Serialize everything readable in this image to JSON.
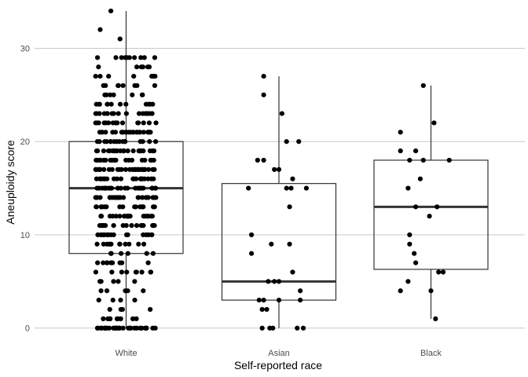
{
  "chart_data": {
    "type": "boxplot",
    "xlabel": "Self-reported race",
    "ylabel": "Aneuploidy score",
    "categories": [
      "White",
      "Asian",
      "Black"
    ],
    "ylim": [
      -1.2,
      34.5
    ],
    "yticks": [
      0,
      10,
      20,
      30
    ],
    "grid": true,
    "colors": {
      "points": "#000000",
      "box_stroke": "#333333",
      "grid": "#c8c8c8",
      "tick_text": "#4d4d4d"
    },
    "boxes": [
      {
        "category": "White",
        "min": 0,
        "q1": 8,
        "median": 15,
        "q3": 20,
        "max": 34
      },
      {
        "category": "Asian",
        "min": 0,
        "q1": 3,
        "median": 5,
        "q3": 15.5,
        "max": 27
      },
      {
        "category": "Black",
        "min": 1,
        "q1": 6.3,
        "median": 13,
        "q3": 18,
        "max": 26
      }
    ],
    "points": [
      {
        "category": "Asian",
        "values": [
          27,
          25,
          23,
          20,
          20,
          18,
          18,
          17,
          17,
          16,
          15,
          15,
          15,
          15,
          13,
          10,
          9,
          9,
          8,
          6,
          5,
          5,
          5,
          4,
          3,
          3,
          3,
          3,
          2,
          2,
          0,
          0,
          0,
          0,
          0
        ],
        "jitter": [
          -0.1,
          -0.1,
          0.02,
          0.05,
          0.13,
          -0.1,
          -0.14,
          -0.03,
          0.0,
          0.09,
          -0.2,
          0.05,
          0.08,
          0.18,
          0.07,
          -0.18,
          -0.05,
          0.07,
          -0.18,
          0.09,
          -0.03,
          -0.07,
          0.0,
          0.14,
          -0.13,
          -0.1,
          0.0,
          0.14,
          -0.11,
          -0.08,
          -0.11,
          -0.06,
          -0.04,
          0.12,
          0.16
        ]
      },
      {
        "category": "Black",
        "values": [
          26,
          22,
          21,
          19,
          19,
          18,
          18,
          18,
          16,
          15,
          13,
          13,
          12,
          10,
          9,
          8,
          7,
          6,
          6,
          5,
          4,
          4,
          1
        ],
        "jitter": [
          -0.05,
          0.02,
          -0.2,
          -0.2,
          -0.1,
          -0.14,
          -0.05,
          0.12,
          -0.07,
          -0.15,
          -0.1,
          0.04,
          -0.01,
          -0.14,
          -0.14,
          -0.11,
          -0.1,
          0.05,
          0.08,
          -0.15,
          -0.2,
          0.0,
          0.03
        ]
      }
    ],
    "dense_points": {
      "category": "White",
      "n": 420,
      "seed": 7,
      "spread": 0.2,
      "median": 15,
      "sd": 6.3,
      "min": 0,
      "max": 29
    },
    "extra_points": {
      "category": "White",
      "values": [
        34,
        32,
        31,
        29,
        29,
        28,
        28,
        27,
        27,
        27,
        26,
        26
      ],
      "jitter": [
        -0.1,
        -0.17,
        -0.04,
        -0.03,
        0.12,
        0.07,
        0.1,
        -0.2,
        0.05,
        0.19,
        -0.05,
        -0.02
      ]
    }
  }
}
